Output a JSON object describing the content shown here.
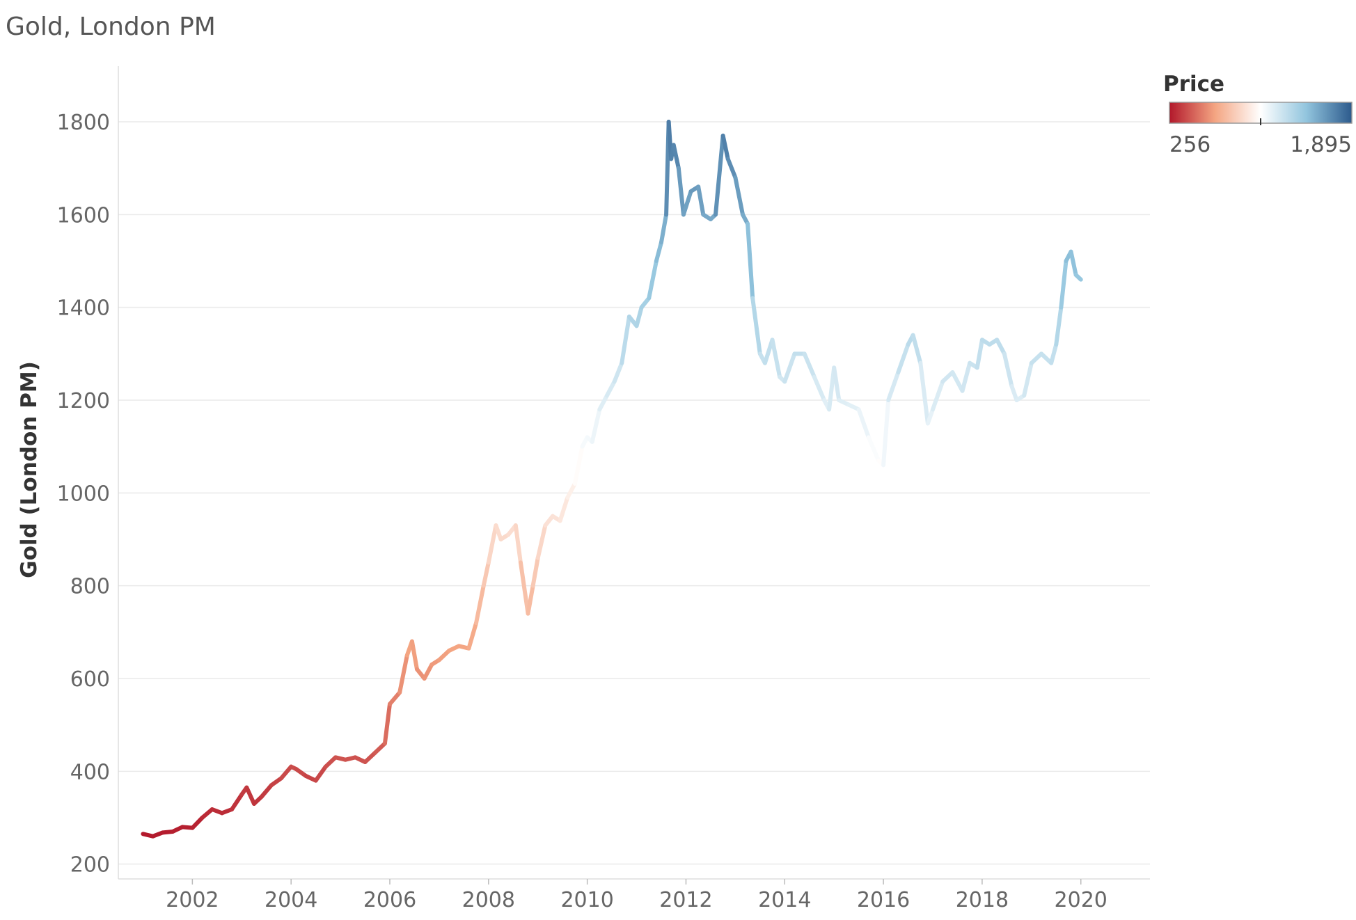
{
  "chart_data": {
    "type": "line",
    "title": "Gold, London PM",
    "ylabel": "Gold (London PM)",
    "xlabel": "",
    "ylim": [
      180,
      1920
    ],
    "xlim": [
      2000.5,
      2021.4
    ],
    "y_ticks": [
      200,
      400,
      600,
      800,
      1000,
      1200,
      1400,
      1600,
      1800
    ],
    "x_ticks": [
      "2002",
      "2004",
      "2006",
      "2008",
      "2010",
      "2012",
      "2014",
      "2016",
      "2018",
      "2020"
    ],
    "grid": true,
    "legend": {
      "title": "Price",
      "min_label": "256",
      "max_label": "1,895",
      "min": 256,
      "max": 1895,
      "placement": "top-right",
      "colors": [
        "#b2182b",
        "#f4a582",
        "#ffffff",
        "#92c5de",
        "#2c5a8c"
      ]
    },
    "series": [
      {
        "x": [
          2001.0,
          2001.2,
          2001.4,
          2001.6,
          2001.8,
          2002.0,
          2002.2,
          2002.4,
          2002.6,
          2002.8,
          2003.0,
          2003.1,
          2003.25,
          2003.4,
          2003.6,
          2003.8,
          2004.0,
          2004.1,
          2004.3,
          2004.5,
          2004.7,
          2004.9,
          2005.1,
          2005.3,
          2005.5,
          2005.7,
          2005.9,
          2006.0,
          2006.2,
          2006.35,
          2006.45,
          2006.55,
          2006.7,
          2006.85,
          2007.0,
          2007.2,
          2007.4,
          2007.6,
          2007.75,
          2007.9,
          2008.0,
          2008.15,
          2008.25,
          2008.4,
          2008.55,
          2008.65,
          2008.8,
          2008.9,
          2009.0,
          2009.15,
          2009.3,
          2009.45,
          2009.6,
          2009.75,
          2009.9,
          2010.0,
          2010.1,
          2010.25,
          2010.4,
          2010.55,
          2010.7,
          2010.85,
          2011.0,
          2011.1,
          2011.25,
          2011.4,
          2011.5,
          2011.6,
          2011.65,
          2011.7,
          2011.75,
          2011.85,
          2011.95,
          2012.1,
          2012.25,
          2012.35,
          2012.5,
          2012.6,
          2012.75,
          2012.85,
          2013.0,
          2013.15,
          2013.25,
          2013.35,
          2013.5,
          2013.6,
          2013.75,
          2013.9,
          2014.0,
          2014.2,
          2014.4,
          2014.6,
          2014.8,
          2014.9,
          2015.0,
          2015.1,
          2015.3,
          2015.5,
          2015.7,
          2015.9,
          2016.0,
          2016.1,
          2016.3,
          2016.5,
          2016.6,
          2016.75,
          2016.9,
          2017.0,
          2017.2,
          2017.4,
          2017.6,
          2017.75,
          2017.9,
          2018.0,
          2018.15,
          2018.3,
          2018.45,
          2018.6,
          2018.7,
          2018.85,
          2019.0,
          2019.2,
          2019.4,
          2019.5,
          2019.6,
          2019.7,
          2019.8,
          2019.9,
          2020.0
        ],
        "values": [
          265,
          260,
          268,
          270,
          280,
          278,
          300,
          318,
          310,
          318,
          350,
          365,
          330,
          345,
          370,
          385,
          410,
          405,
          390,
          380,
          410,
          430,
          425,
          430,
          420,
          440,
          460,
          545,
          570,
          650,
          680,
          620,
          600,
          630,
          640,
          660,
          670,
          665,
          720,
          800,
          850,
          930,
          900,
          910,
          930,
          850,
          740,
          800,
          860,
          930,
          950,
          940,
          990,
          1020,
          1100,
          1120,
          1110,
          1180,
          1210,
          1240,
          1280,
          1380,
          1360,
          1400,
          1420,
          1500,
          1540,
          1600,
          1800,
          1720,
          1750,
          1700,
          1600,
          1650,
          1660,
          1600,
          1590,
          1600,
          1770,
          1720,
          1680,
          1600,
          1580,
          1420,
          1300,
          1280,
          1330,
          1250,
          1240,
          1300,
          1300,
          1250,
          1200,
          1180,
          1270,
          1200,
          1190,
          1180,
          1120,
          1070,
          1060,
          1200,
          1260,
          1320,
          1340,
          1280,
          1150,
          1180,
          1240,
          1260,
          1220,
          1280,
          1270,
          1330,
          1320,
          1330,
          1300,
          1230,
          1200,
          1210,
          1280,
          1300,
          1280,
          1320,
          1400,
          1500,
          1520,
          1470,
          1460
        ]
      }
    ]
  }
}
